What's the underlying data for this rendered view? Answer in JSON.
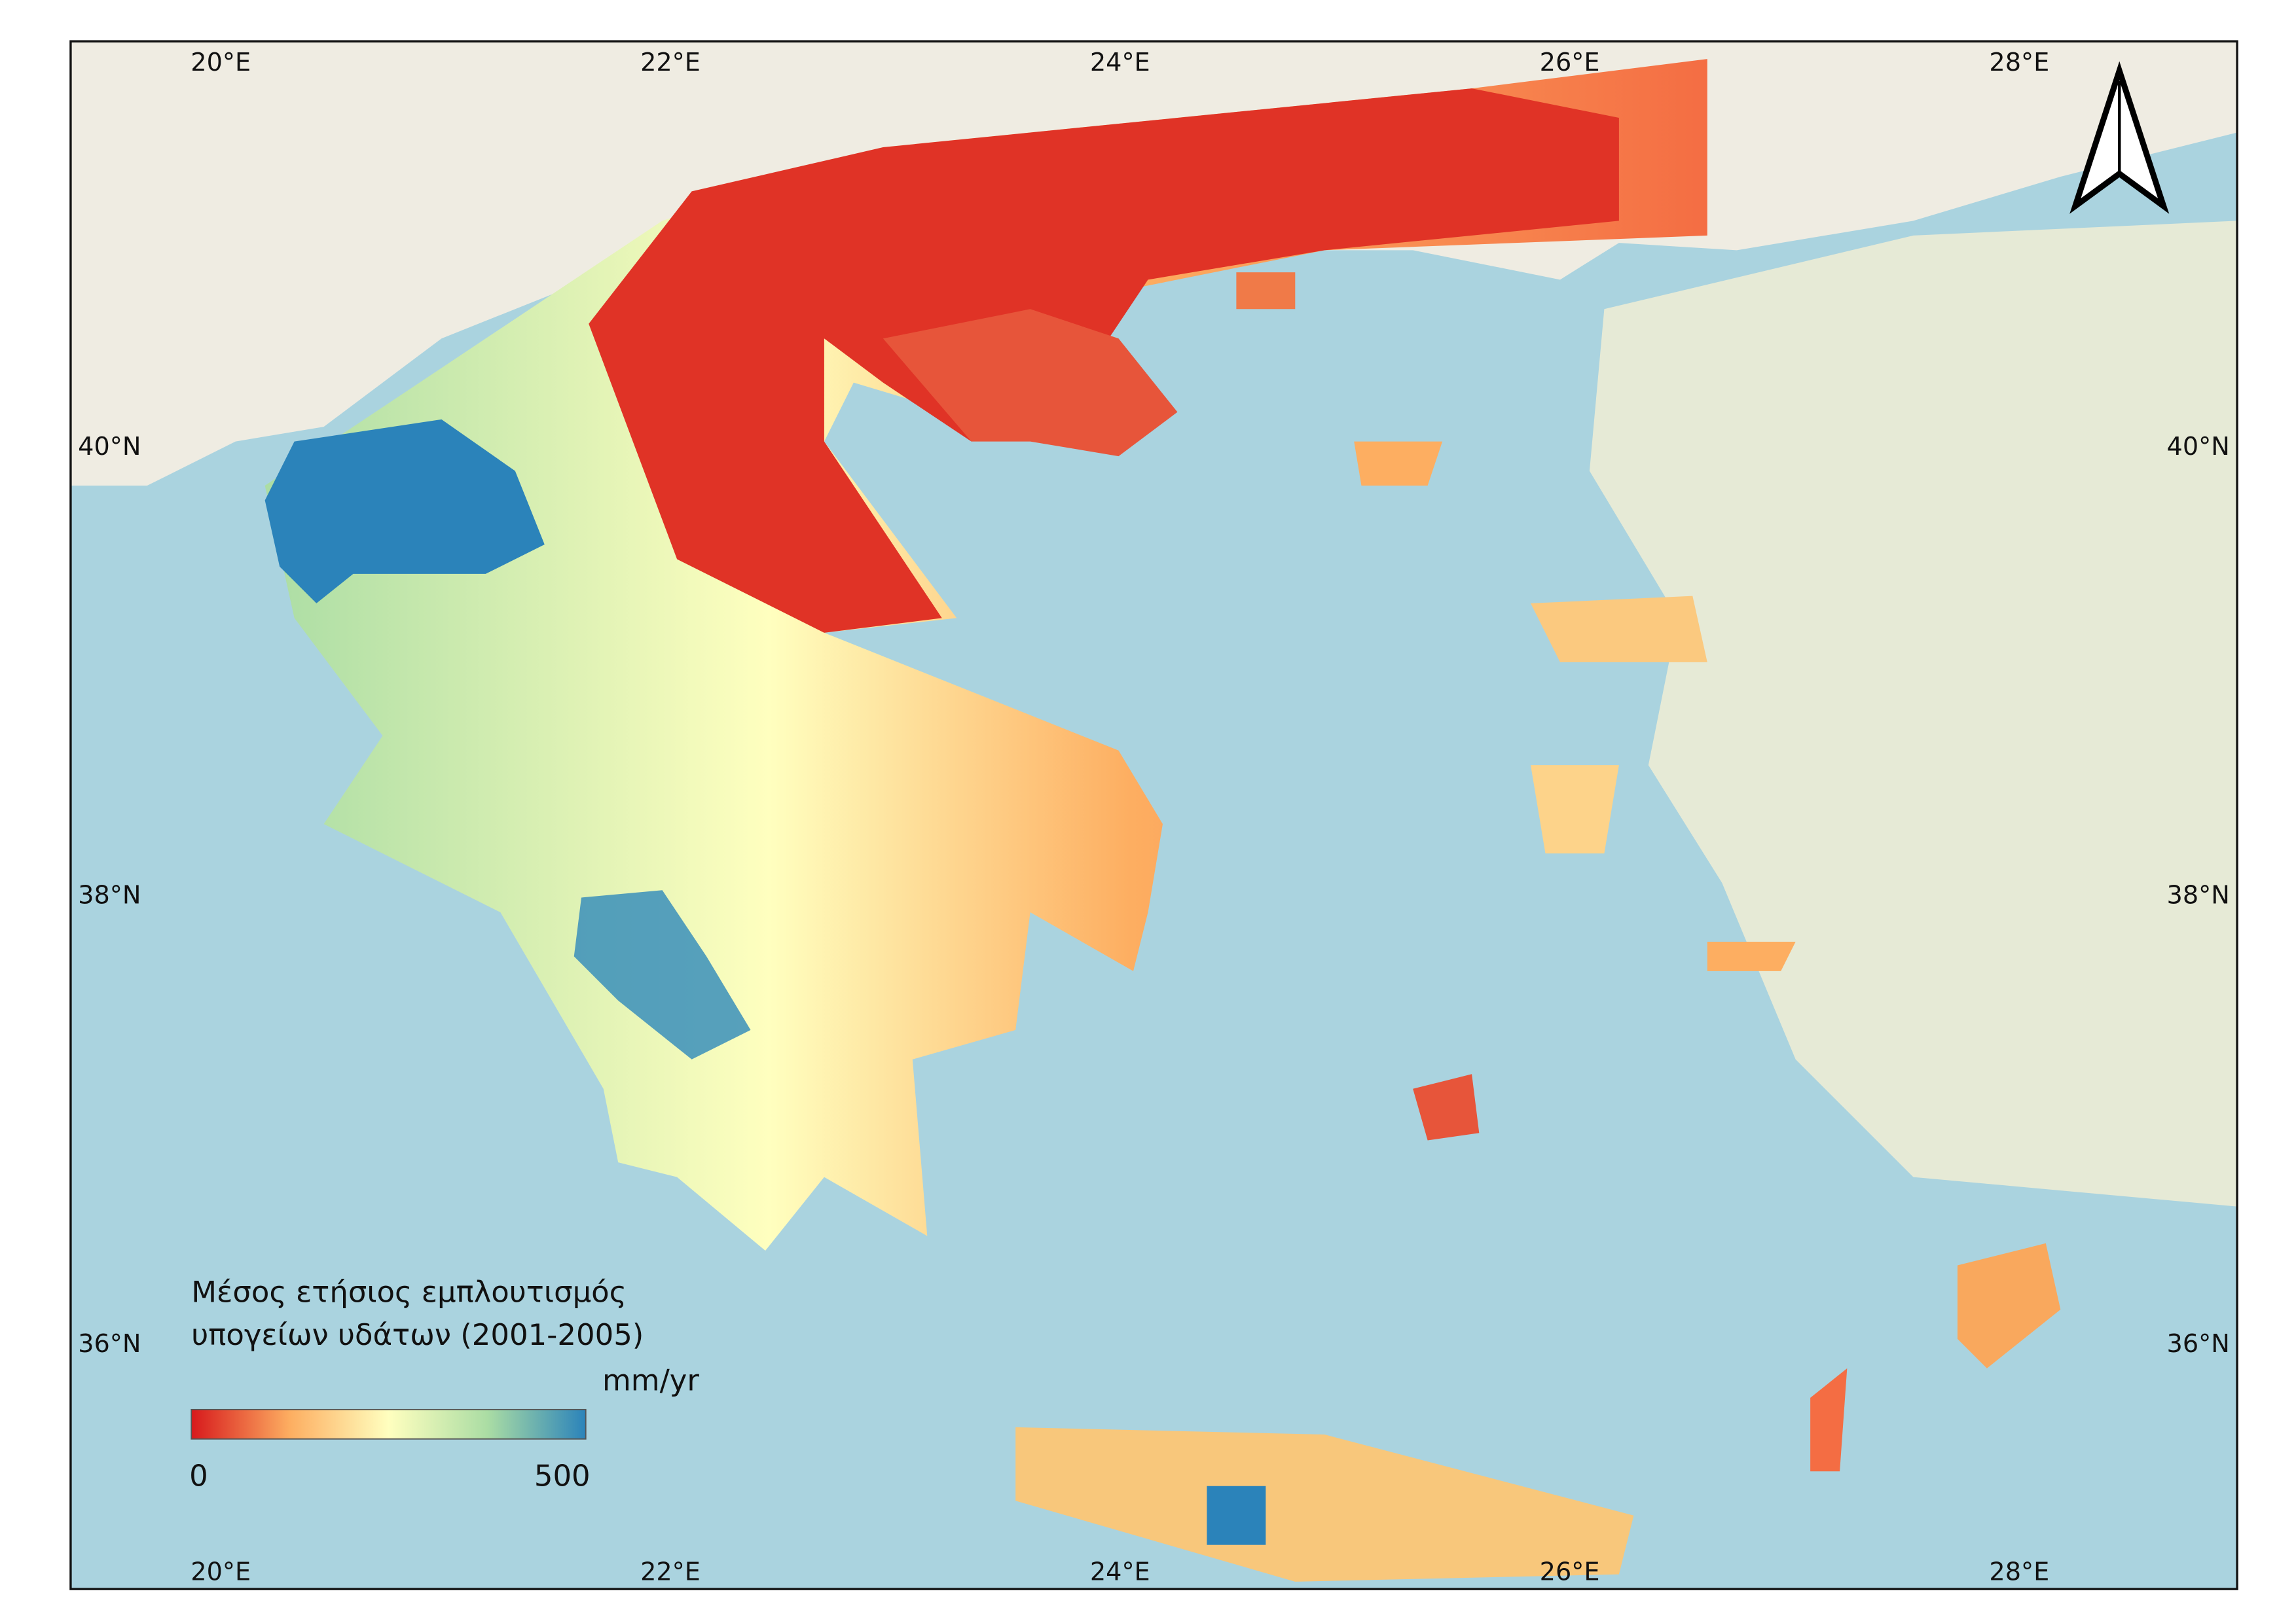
{
  "map": {
    "graticule": {
      "longitudes": [
        "20°E",
        "22°E",
        "24°E",
        "26°E",
        "28°E"
      ],
      "latitudes": [
        "40°N",
        "38°N",
        "36°N"
      ]
    },
    "legend": {
      "title": [
        "Μέσος ετήσιος εμπλουτισμός",
        "υπογείων υδάτων (2001-2005)"
      ],
      "unit": "mm/yr",
      "min": 0,
      "max": 500,
      "colors": [
        "#d7191c",
        "#fdae61",
        "#ffffbf",
        "#abdda4",
        "#2b83ba"
      ]
    }
  }
}
